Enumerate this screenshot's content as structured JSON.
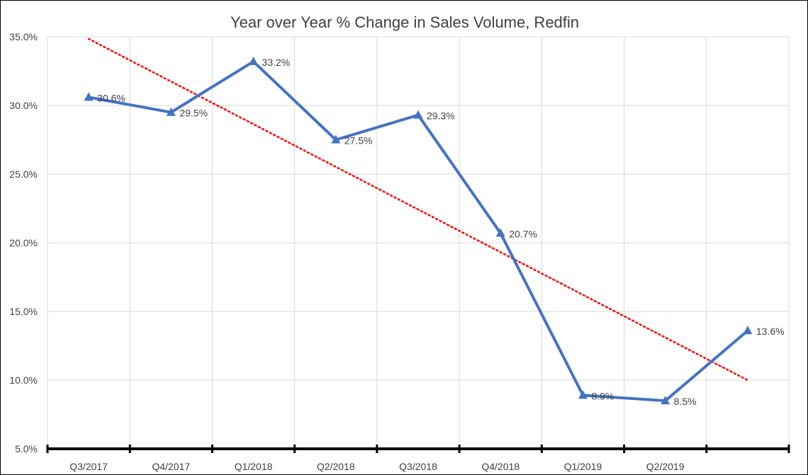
{
  "chart_data": {
    "type": "line",
    "title": "Year over Year % Change in Sales Volume, Redfin",
    "xlabel": "",
    "ylabel": "",
    "categories": [
      "Q3/2017",
      "Q4/2017",
      "Q1/2018",
      "Q2/2018",
      "Q3/2018",
      "Q4/2018",
      "Q1/2019",
      "Q2/2019",
      ""
    ],
    "series": [
      {
        "values": [
          30.6,
          29.5,
          33.2,
          27.5,
          29.3,
          20.7,
          8.9,
          8.5,
          13.6
        ],
        "labels": [
          "30.6%",
          "29.5%",
          "33.2%",
          "27.5%",
          "29.3%",
          "20.7%",
          "8.9%",
          "8.5%",
          "13.6%"
        ],
        "color": "#4472C4",
        "marker": "triangle"
      }
    ],
    "trendline": {
      "type": "linear",
      "style": "dotted",
      "color": "#FF0000"
    },
    "ylim": [
      5,
      35
    ],
    "ytick_values": [
      5,
      10,
      15,
      20,
      25,
      30,
      35
    ],
    "ytick_labels": [
      "5.0%",
      "10.0%",
      "15.0%",
      "20.0%",
      "25.0%",
      "30.0%",
      "35.0%"
    ],
    "grid": true,
    "legend": "none",
    "colors": {
      "grid": "#D9D9D9",
      "axis": "#000000",
      "text": "#404040"
    }
  }
}
